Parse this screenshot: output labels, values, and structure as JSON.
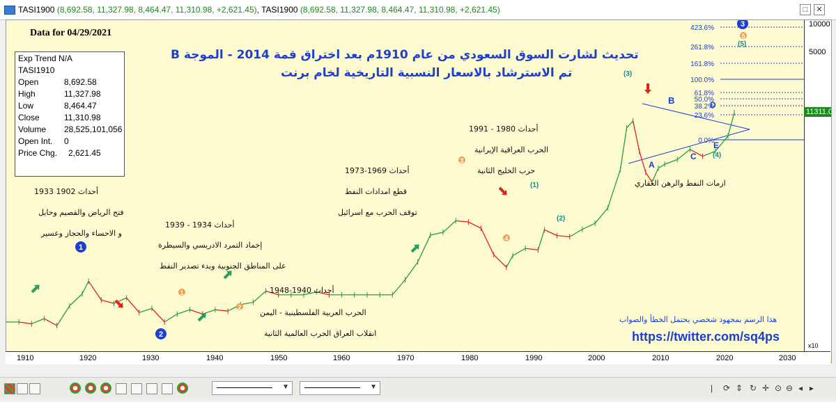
{
  "window": {
    "title_prefix": "TASI1900",
    "title_values": "(8,692.58, 11,327.98, 8,464.47, 11,310.98, +2,621.45)",
    "title_repeat": "TASI1900",
    "title_values_2": "(8,692.58, 11,327.98, 8,464.47, 11,310.98, +2,621.45)",
    "restore_label": "□",
    "close_label": "✕"
  },
  "header": {
    "data_for": "Data for 04/29/2021",
    "title_line1": "تحديث لشارت السوق السعودي من عام 1910م بعد اختراق قمة 2014 - الموجة B",
    "title_line2": "تم الاسترشاد بالاسعار النسبية التاريخية لخام برنت"
  },
  "infobox": {
    "rows": [
      {
        "label": "Exp Trend N/A",
        "value": ""
      },
      {
        "label": "TASI1910",
        "value": ""
      },
      {
        "label": "Open",
        "value": "8,692.58"
      },
      {
        "label": "High",
        "value": "11,327.98"
      },
      {
        "label": "Low",
        "value": "8,464.47"
      },
      {
        "label": "Close",
        "value": "11,310.98"
      },
      {
        "label": "Volume",
        "value": "28,525,101,056"
      },
      {
        "label": "Open Int.",
        "value": "0"
      },
      {
        "label": "Price Chg.",
        "value": "2,621.45"
      }
    ]
  },
  "annotations": {
    "e1933_1": "أحداث 1902 1933",
    "e1933_2": "فتح الرياض والقصيم وحايل",
    "e1933_3": "و الاحساء والحجاز وعسير",
    "e1939_1": "أحداث 1934 - 1939",
    "e1939_2": "إخماد التمرد الادريسي والسيطرة",
    "e1939_3": "على المناطق الجنوبية وبدء تصدير النفط",
    "e1948_1": "أحداث 1940-1948",
    "e1948_2": "الحرب العربية الفلسطينية - اليمن",
    "e1948_3": "انقلاب العراق الحرب العالمية الثانية",
    "e1973_1": "أحداث 1969-1973",
    "e1973_2": "قطع امدادات النفط",
    "e1973_3": "توقف الحرب مع اسرائيل",
    "e1991_1": "أحداث 1980 - 1991",
    "e1991_2": "الحرب العراقية الإيرانية",
    "e1991_3": "حرب الخليج الثانية",
    "oil_crisis": "ازمات النفط والرهن العقاري",
    "disclaimer": "هذا الرسم بمجهود شخصي يحتمل الخطأ والصواب",
    "twitter": "https://twitter.com/sq4ps"
  },
  "wave_labels": {
    "w1": "1",
    "w2": "2",
    "w3_blue": "3",
    "w1_orange": "1",
    "w2_orange": "2",
    "w3_orange": "3",
    "w4_orange": "4",
    "w5_orange": "5",
    "w_p3": "(3)",
    "w_p1": "(1)",
    "w_p2": "(2)",
    "w_p4": "(4)",
    "w_p5": "(5)",
    "A": "A",
    "B": "B",
    "C": "C",
    "D": "D",
    "E": "E"
  },
  "fib_levels": [
    "423.6%",
    "261.8%",
    "161.8%",
    "100.0%",
    "61.8%",
    "50.0%",
    "38.2%",
    "23.6%",
    "0.0%"
  ],
  "price_tag": "11311.0",
  "scale_marker": "x10",
  "colors": {
    "up": "#2a9d3a",
    "down": "#e0241b",
    "accent_blue": "#1d3fd1",
    "chart_bg": "#fdfbcf",
    "price_tag_bg": "#1b8c1b"
  },
  "chart_data": {
    "type": "line",
    "title": "",
    "xlabel": "",
    "ylabel": "",
    "xlim": [
      1906,
      2032
    ],
    "x_ticks": [
      "1910",
      "1920",
      "1930",
      "1940",
      "1950",
      "1960",
      "1970",
      "1980",
      "1990",
      "2000",
      "2010",
      "2020",
      "2030"
    ],
    "y_ticks": [
      "10000",
      "5000"
    ],
    "y_scale": "log",
    "series": [
      {
        "x": [
          1906,
          1908,
          1910,
          1912,
          1914,
          1916,
          1918,
          1919,
          1921,
          1923,
          1925,
          1927,
          1929,
          1931,
          1933,
          1935,
          1937,
          1939,
          1941,
          1943,
          1945,
          1947,
          1949,
          1951,
          1953,
          1955,
          1957,
          1959,
          1961,
          1963,
          1965,
          1967,
          1969,
          1971,
          1973,
          1975,
          1977,
          1979,
          1981,
          1983,
          1985,
          1986,
          1988,
          1990,
          1991,
          1993,
          1995,
          1997,
          1999,
          2001,
          2003,
          2004,
          2005,
          2006,
          2007,
          2008,
          2009,
          2010,
          2012,
          2014,
          2016,
          2018,
          2020,
          2021
        ],
        "y": [
          135,
          135,
          130,
          145,
          125,
          190,
          245,
          320,
          215,
          200,
          225,
          165,
          180,
          135,
          160,
          175,
          160,
          175,
          170,
          195,
          205,
          260,
          240,
          240,
          240,
          255,
          240,
          240,
          240,
          240,
          240,
          240,
          330,
          480,
          850,
          900,
          1150,
          1120,
          980,
          560,
          430,
          550,
          640,
          620,
          950,
          840,
          820,
          960,
          1090,
          1500,
          3400,
          8200,
          9500,
          5000,
          3200,
          2600,
          3500,
          3800,
          4200,
          5200,
          4500,
          5000,
          6900,
          11311
        ]
      }
    ]
  }
}
